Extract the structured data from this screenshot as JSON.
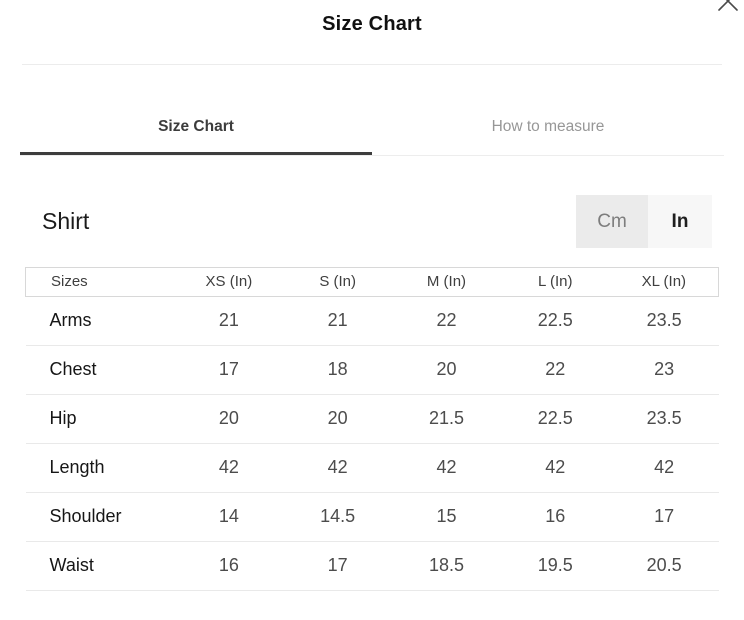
{
  "modal": {
    "title": "Size Chart"
  },
  "icons": {
    "close": "close-x"
  },
  "tabs": [
    {
      "label": "Size Chart",
      "active": true
    },
    {
      "label": "How to measure",
      "active": false
    }
  ],
  "section": {
    "heading": "Shirt",
    "unit_toggle": {
      "options": [
        {
          "label": "Cm",
          "selected": false
        },
        {
          "label": "In",
          "selected": true
        }
      ],
      "selected_unit": "In"
    }
  },
  "table": {
    "columns": [
      "Sizes",
      "XS (In)",
      "S (In)",
      "M (In)",
      "L (In)",
      "XL (In)"
    ],
    "rows": [
      {
        "label": "Arms",
        "values": [
          "21",
          "21",
          "22",
          "22.5",
          "23.5"
        ]
      },
      {
        "label": "Chest",
        "values": [
          "17",
          "18",
          "20",
          "22",
          "23"
        ]
      },
      {
        "label": "Hip",
        "values": [
          "20",
          "20",
          "21.5",
          "22.5",
          "23.5"
        ]
      },
      {
        "label": "Length",
        "values": [
          "42",
          "42",
          "42",
          "42",
          "42"
        ]
      },
      {
        "label": "Shoulder",
        "values": [
          "14",
          "14.5",
          "15",
          "16",
          "17"
        ]
      },
      {
        "label": "Waist",
        "values": [
          "16",
          "17",
          "18.5",
          "19.5",
          "20.5"
        ]
      }
    ]
  },
  "colors": {
    "active_tab_underline": "#3d3d3d",
    "inactive_tab_text": "#979797",
    "cm_button_bg": "#ebebeb",
    "in_button_bg": "#f7f7f7",
    "divider": "#ececec",
    "table_header_border": "#d8d8d8",
    "value_text": "#4c4c4c"
  }
}
